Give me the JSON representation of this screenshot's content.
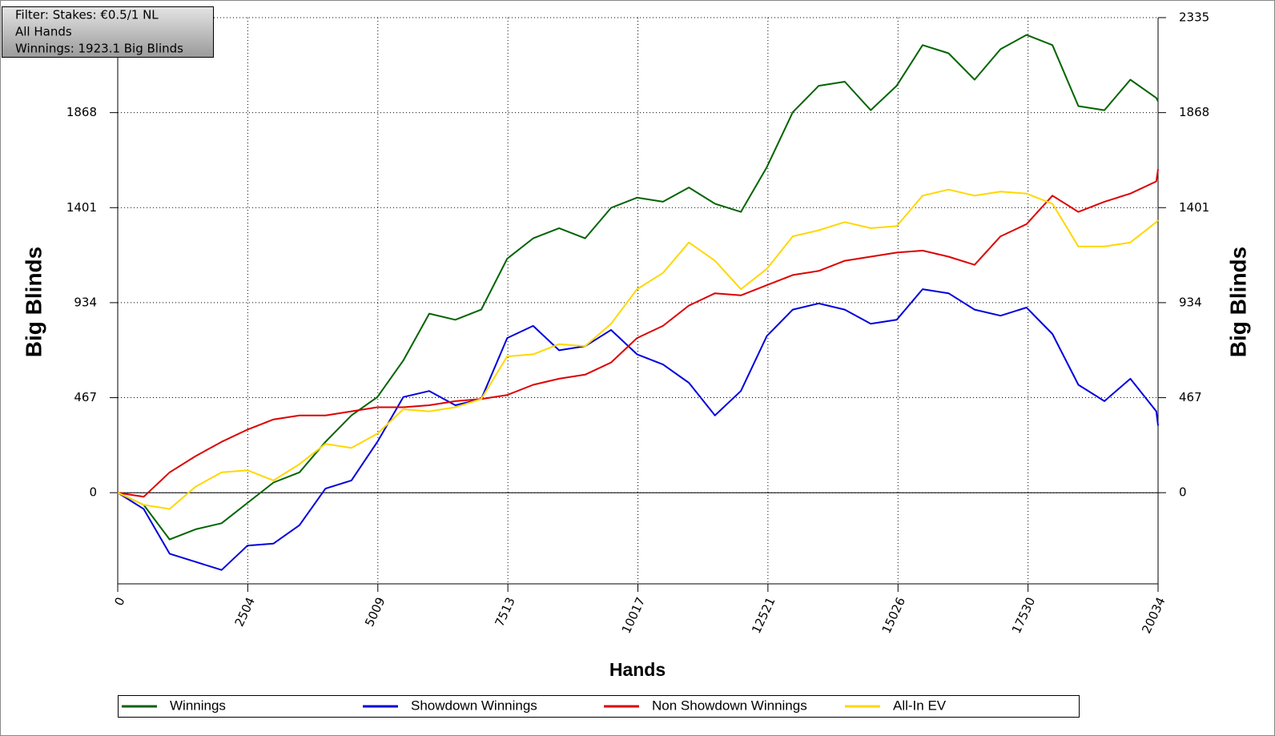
{
  "chart_data": {
    "type": "line",
    "annotations": [
      "Filter: Stakes: €0.5/1 NL",
      "All Hands",
      "Winnings: 1923.1 Big Blinds"
    ],
    "xlabel": "Hands",
    "ylabel": "Big Blinds",
    "y2label": "Big Blinds",
    "xlim": [
      0,
      20034
    ],
    "xticks": [
      0,
      2504,
      5009,
      7513,
      10017,
      12521,
      15026,
      17530,
      20034
    ],
    "ylim": [
      -448,
      2335
    ],
    "yticks": [
      0,
      467,
      934,
      1401,
      1868,
      2335
    ],
    "y2lim": [
      -448,
      2335
    ],
    "y2ticks": [
      0,
      467,
      934,
      1401,
      1868,
      2335
    ],
    "grid": true,
    "legend": "bottom",
    "x": [
      0,
      500,
      1000,
      1500,
      2000,
      2500,
      3000,
      3500,
      4000,
      4500,
      5000,
      5500,
      6000,
      6500,
      7000,
      7500,
      8000,
      8500,
      9000,
      9500,
      10000,
      10500,
      11000,
      11500,
      12000,
      12500,
      13000,
      13500,
      14000,
      14500,
      15000,
      15500,
      16000,
      16500,
      17000,
      17500,
      18000,
      18500,
      19000,
      19500,
      20000,
      20034
    ],
    "series": [
      {
        "name": "Winnings",
        "color": "#006400",
        "values": [
          0,
          -60,
          -230,
          -180,
          -150,
          -50,
          50,
          100,
          250,
          380,
          470,
          650,
          880,
          850,
          900,
          1150,
          1250,
          1300,
          1250,
          1400,
          1450,
          1430,
          1500,
          1420,
          1380,
          1600,
          1870,
          2000,
          2020,
          1880,
          2000,
          2200,
          2160,
          2030,
          2180,
          2250,
          2200,
          1900,
          1880,
          2030,
          1940,
          1923.1
        ]
      },
      {
        "name": "Showdown Winnings",
        "color": "#0000dd",
        "values": [
          0,
          -80,
          -300,
          -340,
          -380,
          -260,
          -250,
          -160,
          20,
          60,
          250,
          470,
          500,
          430,
          460,
          760,
          820,
          700,
          720,
          800,
          680,
          630,
          540,
          380,
          500,
          770,
          900,
          930,
          900,
          830,
          850,
          1000,
          980,
          900,
          870,
          910,
          780,
          530,
          450,
          560,
          400,
          330
        ]
      },
      {
        "name": "Non Showdown Winnings",
        "color": "#dd0000",
        "values": [
          0,
          -20,
          100,
          180,
          250,
          310,
          360,
          380,
          380,
          400,
          420,
          420,
          430,
          450,
          460,
          480,
          530,
          560,
          580,
          640,
          760,
          820,
          920,
          980,
          970,
          1020,
          1070,
          1090,
          1140,
          1160,
          1180,
          1190,
          1160,
          1120,
          1260,
          1320,
          1460,
          1380,
          1430,
          1470,
          1530,
          1590
        ]
      },
      {
        "name": "All-In EV",
        "color": "#ffd700",
        "values": [
          0,
          -60,
          -80,
          30,
          100,
          110,
          60,
          140,
          240,
          220,
          290,
          410,
          400,
          420,
          460,
          670,
          680,
          730,
          720,
          830,
          1000,
          1080,
          1230,
          1140,
          1000,
          1100,
          1260,
          1290,
          1330,
          1300,
          1310,
          1460,
          1490,
          1460,
          1480,
          1470,
          1420,
          1210,
          1210,
          1230,
          1330,
          1340
        ]
      }
    ]
  }
}
